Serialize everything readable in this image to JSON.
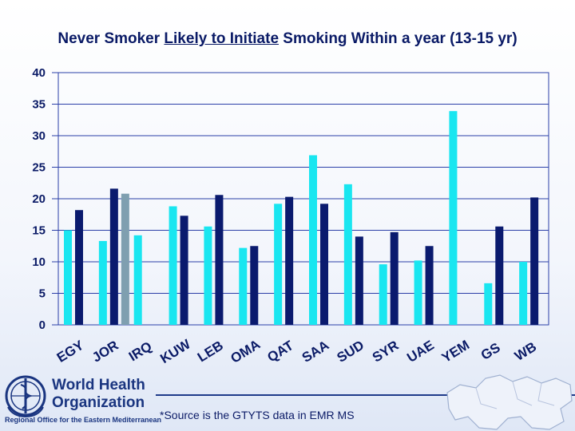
{
  "title": {
    "before": "Never Smoker ",
    "underlined": "Likely to Initiate",
    "after": " Smoking Within a year (13-15 yr)"
  },
  "source_note": "*Source is the GTYTS data in EMR MS",
  "logo": {
    "line1": "World Health",
    "line2": "Organization",
    "sub": "Regional Office for the Eastern Mediterranean"
  },
  "colors": {
    "bar_cyan": "#19e6f0",
    "bar_navy": "#0a1a6e",
    "bar_grey": "#7f9fb0",
    "grid": "#2b3fa8",
    "axis_text": "#0a1a66"
  },
  "chart_data": {
    "type": "bar",
    "ylim": [
      0,
      40
    ],
    "yticks": [
      0,
      5,
      10,
      15,
      20,
      25,
      30,
      35,
      40
    ],
    "grid": true,
    "categories": [
      "EGY",
      "JOR",
      "IRQ",
      "KUW",
      "LEB",
      "OMA",
      "QAT",
      "SAA",
      "SUD",
      "SYR",
      "UAE",
      "YEM",
      "GS",
      "WB"
    ],
    "series": [
      {
        "color": "#19e6f0",
        "values": [
          15,
          13.3,
          14.2,
          18.8,
          15.6,
          12.2,
          19.2,
          26.9,
          22.3,
          9.6,
          10.2,
          33.9,
          6.6,
          10
        ]
      },
      {
        "color": "#0a1a6e",
        "values": [
          18.2,
          21.6,
          null,
          17.3,
          20.6,
          12.5,
          20.3,
          19.2,
          14,
          14.7,
          12.5,
          null,
          15.6,
          20.2
        ]
      },
      {
        "color": "#7f9fb0",
        "values": [
          null,
          20.8,
          null,
          null,
          null,
          null,
          null,
          null,
          null,
          null,
          null,
          null,
          null,
          null
        ]
      }
    ]
  }
}
